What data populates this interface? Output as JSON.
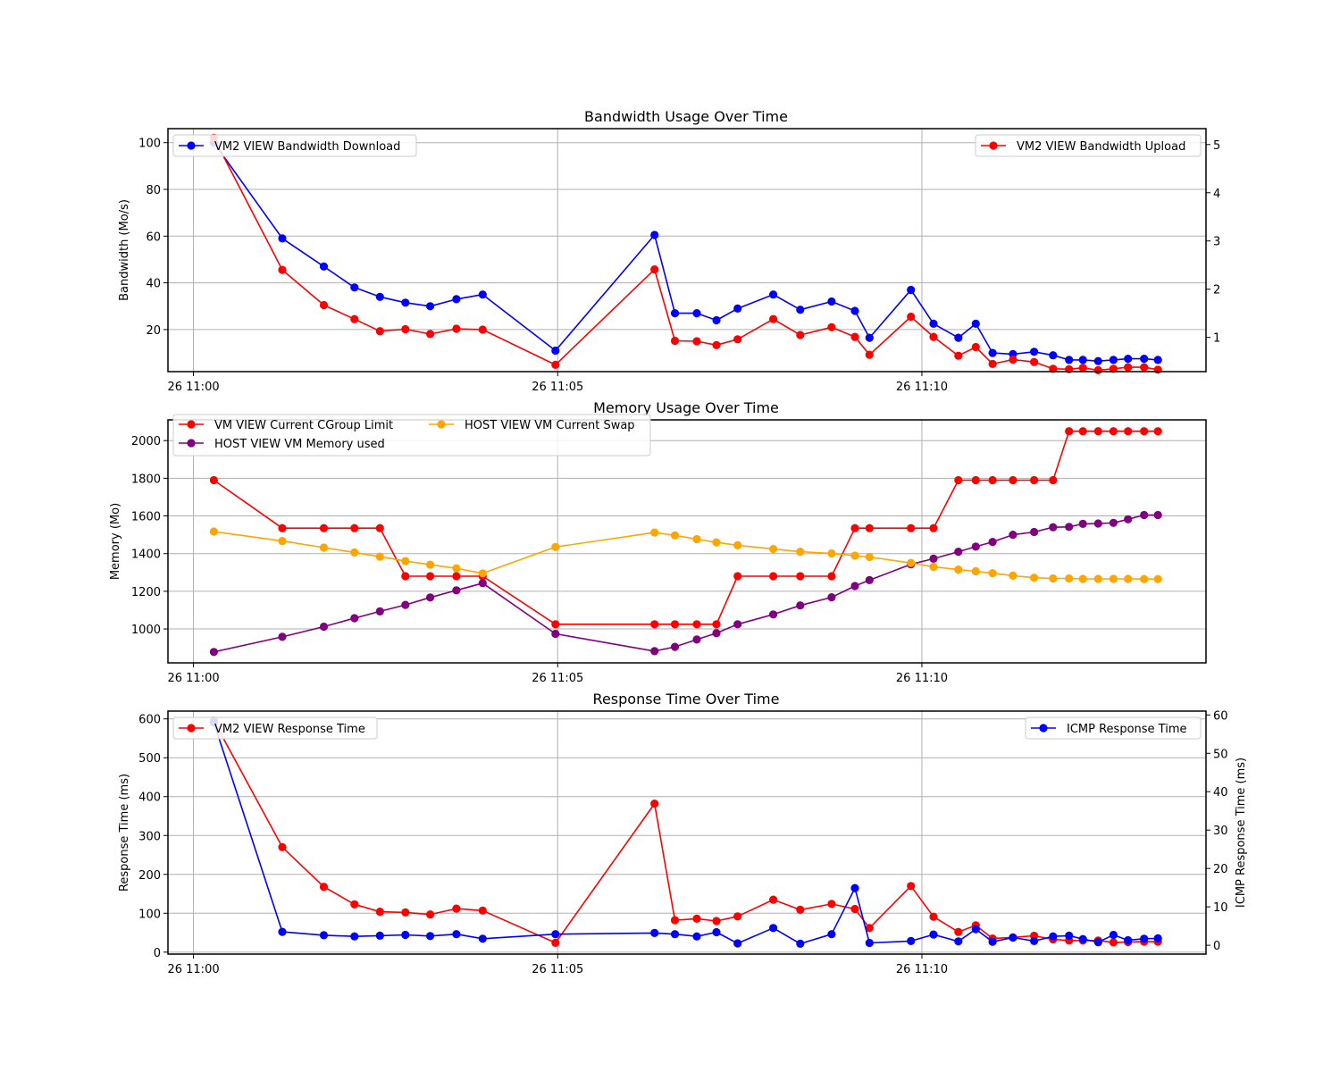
{
  "colors": {
    "blue": "#0000ff",
    "red": "#ff0000",
    "purple": "#800080",
    "orange": "#ffa500",
    "grid": "#b0b0b0",
    "axis": "#000000"
  },
  "time_ticks": [
    "26 11:00",
    "26 11:05",
    "26 11:10"
  ],
  "chart_data": [
    {
      "type": "line",
      "title": "Bandwidth Usage Over Time",
      "xlabel": "",
      "xlim": [
        -0.35,
        13.9
      ],
      "x_ticks": [
        0,
        5,
        10
      ],
      "x_tick_labels": [
        "26 11:00",
        "26 11:05",
        "26 11:10"
      ],
      "ylabel": "Bandwidth (Mo/s)",
      "ylim": [
        2,
        106
      ],
      "y_ticks": [
        20,
        40,
        60,
        80,
        100
      ],
      "y2label": "",
      "y2lim": [
        0.29,
        5.33
      ],
      "y2_ticks": [
        1,
        2,
        3,
        4,
        5
      ],
      "grid": true,
      "series": [
        {
          "name": "VM2 VIEW Bandwidth Download",
          "axis": "left",
          "color": "blue",
          "legend": "upper-left",
          "x": [
            0.28,
            1.22,
            1.79,
            2.21,
            2.56,
            2.91,
            3.25,
            3.61,
            3.97,
            4.97,
            6.33,
            6.61,
            6.91,
            7.18,
            7.47,
            7.96,
            8.33,
            8.76,
            9.08,
            9.28,
            9.85,
            10.16,
            10.5,
            10.74,
            10.97,
            11.25,
            11.54,
            11.8,
            12.02,
            12.21,
            12.42,
            12.63,
            12.83,
            13.05,
            13.24
          ],
          "y": [
            100,
            59,
            47,
            38,
            34,
            31.5,
            30,
            33,
            35,
            11,
            60.5,
            27,
            27,
            24,
            29,
            35,
            28.5,
            32,
            28,
            16.5,
            37,
            22.5,
            16.5,
            22.5,
            10,
            9.5,
            10.5,
            9,
            7,
            7,
            6.5,
            7,
            7.5,
            7.5,
            7
          ]
        },
        {
          "name": "VM2 VIEW Bandwidth Upload",
          "axis": "right",
          "color": "red",
          "legend": "upper-right",
          "x": [
            0.28,
            1.22,
            1.79,
            2.21,
            2.56,
            2.91,
            3.25,
            3.61,
            3.97,
            4.97,
            6.33,
            6.61,
            6.91,
            7.18,
            7.47,
            7.96,
            8.33,
            8.76,
            9.08,
            9.28,
            9.85,
            10.16,
            10.5,
            10.74,
            10.97,
            11.25,
            11.54,
            11.8,
            12.02,
            12.21,
            12.42,
            12.63,
            12.83,
            13.05,
            13.24
          ],
          "y": [
            5.14,
            2.4,
            1.67,
            1.38,
            1.13,
            1.17,
            1.07,
            1.18,
            1.16,
            0.43,
            2.41,
            0.93,
            0.92,
            0.84,
            0.96,
            1.38,
            1.05,
            1.21,
            1.01,
            0.64,
            1.43,
            1.01,
            0.62,
            0.8,
            0.45,
            0.54,
            0.49,
            0.35,
            0.34,
            0.37,
            0.32,
            0.35,
            0.38,
            0.38,
            0.33
          ]
        }
      ]
    },
    {
      "type": "line",
      "title": "Memory Usage Over Time",
      "xlabel": "",
      "xlim": [
        -0.35,
        13.9
      ],
      "x_ticks": [
        0,
        5,
        10
      ],
      "x_tick_labels": [
        "26 11:00",
        "26 11:05",
        "26 11:10"
      ],
      "ylabel": "Memory (Mo)",
      "ylim": [
        820,
        2110
      ],
      "y_ticks": [
        1000,
        1200,
        1400,
        1600,
        1800,
        2000
      ],
      "grid": true,
      "legend_location": "upper-left",
      "legend_columns": 2,
      "series": [
        {
          "name": "VM VIEW Current CGroup Limit",
          "color": "red",
          "x": [
            0.28,
            1.22,
            1.79,
            2.21,
            2.56,
            2.91,
            3.25,
            3.61,
            3.97,
            4.97,
            6.33,
            6.61,
            6.91,
            7.18,
            7.47,
            7.96,
            8.33,
            8.76,
            9.08,
            9.28,
            9.85,
            10.16,
            10.5,
            10.74,
            10.97,
            11.25,
            11.54,
            11.8,
            12.02,
            12.21,
            12.42,
            12.63,
            12.83,
            13.05,
            13.24
          ],
          "y": [
            1790,
            1535,
            1535,
            1535,
            1535,
            1280,
            1280,
            1280,
            1280,
            1025,
            1025,
            1025,
            1025,
            1025,
            1280,
            1280,
            1280,
            1280,
            1535,
            1535,
            1535,
            1535,
            1790,
            1790,
            1790,
            1790,
            1790,
            1790,
            2050,
            2050,
            2050,
            2050,
            2050,
            2050,
            2050
          ]
        },
        {
          "name": "HOST VIEW VM Memory used",
          "color": "purple",
          "x": [
            0.28,
            1.22,
            1.79,
            2.21,
            2.56,
            2.91,
            3.25,
            3.61,
            3.97,
            4.97,
            6.33,
            6.61,
            6.91,
            7.18,
            7.47,
            7.96,
            8.33,
            8.76,
            9.08,
            9.28,
            9.85,
            10.16,
            10.5,
            10.74,
            10.97,
            11.25,
            11.54,
            11.8,
            12.02,
            12.21,
            12.42,
            12.63,
            12.83,
            13.05,
            13.24
          ],
          "y": [
            878,
            958,
            1012,
            1057,
            1093,
            1128,
            1167,
            1205,
            1243,
            974,
            882,
            905,
            944,
            978,
            1025,
            1077,
            1125,
            1168,
            1228,
            1259,
            1343,
            1373,
            1410,
            1437,
            1462,
            1500,
            1515,
            1540,
            1542,
            1558,
            1560,
            1563,
            1582,
            1605,
            1605
          ]
        },
        {
          "name": "HOST VIEW VM Current Swap",
          "color": "orange",
          "x": [
            0.28,
            1.22,
            1.79,
            2.21,
            2.56,
            2.91,
            3.25,
            3.61,
            3.97,
            4.97,
            6.33,
            6.61,
            6.91,
            7.18,
            7.47,
            7.96,
            8.33,
            8.76,
            9.08,
            9.28,
            9.85,
            10.16,
            10.5,
            10.74,
            10.97,
            11.25,
            11.54,
            11.8,
            12.02,
            12.21,
            12.42,
            12.63,
            12.83,
            13.05,
            13.24
          ],
          "y": [
            1517,
            1467,
            1432,
            1406,
            1384,
            1360,
            1341,
            1322,
            1295,
            1435,
            1512,
            1497,
            1477,
            1460,
            1444,
            1424,
            1410,
            1401,
            1389,
            1382,
            1350,
            1330,
            1315,
            1306,
            1296,
            1283,
            1272,
            1268,
            1268,
            1266,
            1266,
            1266,
            1266,
            1265,
            1265
          ]
        }
      ]
    },
    {
      "type": "line",
      "title": "Response Time Over Time",
      "xlabel": "",
      "xlim": [
        -0.35,
        13.9
      ],
      "x_ticks": [
        0,
        5,
        10
      ],
      "x_tick_labels": [
        "26 11:00",
        "26 11:05",
        "26 11:10"
      ],
      "ylabel": "Response Time (ms)",
      "ylim": [
        -5,
        620
      ],
      "y_ticks": [
        0,
        100,
        200,
        300,
        400,
        500,
        600
      ],
      "y2label": "ICMP Response Time (ms)",
      "y2lim": [
        -2.3,
        61
      ],
      "y2_ticks": [
        0,
        10,
        20,
        30,
        40,
        50,
        60
      ],
      "grid": true,
      "series": [
        {
          "name": "VM2 VIEW Response Time",
          "axis": "left",
          "color": "red",
          "legend": "upper-left",
          "x": [
            0.28,
            1.22,
            1.79,
            2.21,
            2.56,
            2.91,
            3.25,
            3.61,
            3.97,
            4.97,
            6.33,
            6.61,
            6.91,
            7.18,
            7.47,
            7.96,
            8.33,
            8.76,
            9.08,
            9.28,
            9.85,
            10.16,
            10.5,
            10.74,
            10.97,
            11.25,
            11.54,
            11.8,
            12.02,
            12.21,
            12.42,
            12.63,
            12.83,
            13.05,
            13.24
          ],
          "y": [
            595,
            270,
            168,
            123,
            104,
            102,
            97,
            112,
            107,
            24,
            382,
            82,
            86,
            80,
            92,
            135,
            109,
            124,
            111,
            62,
            170,
            91,
            52,
            69,
            35,
            38,
            42,
            33,
            30,
            30,
            30,
            25,
            26,
            27,
            27
          ]
        },
        {
          "name": "ICMP Response Time",
          "axis": "right",
          "color": "blue",
          "legend": "upper-right",
          "x": [
            0.28,
            1.22,
            1.79,
            2.21,
            2.56,
            2.91,
            3.25,
            3.61,
            3.97,
            4.97,
            6.33,
            6.61,
            6.91,
            7.18,
            7.47,
            7.96,
            8.33,
            8.76,
            9.08,
            9.28,
            9.85,
            10.16,
            10.5,
            10.74,
            10.97,
            11.25,
            11.54,
            11.8,
            12.02,
            12.21,
            12.42,
            12.63,
            12.83,
            13.05,
            13.24
          ],
          "y": [
            58,
            3.5,
            2.6,
            2.3,
            2.5,
            2.7,
            2.4,
            2.9,
            1.7,
            2.9,
            3.2,
            2.9,
            2.3,
            3.4,
            0.5,
            4.5,
            0.4,
            2.9,
            14.9,
            0.6,
            1.1,
            2.8,
            1.0,
            4.2,
            0.9,
            2.0,
            1.1,
            2.3,
            2.5,
            1.6,
            0.8,
            2.7,
            1.3,
            1.7,
            1.8
          ]
        }
      ]
    }
  ]
}
